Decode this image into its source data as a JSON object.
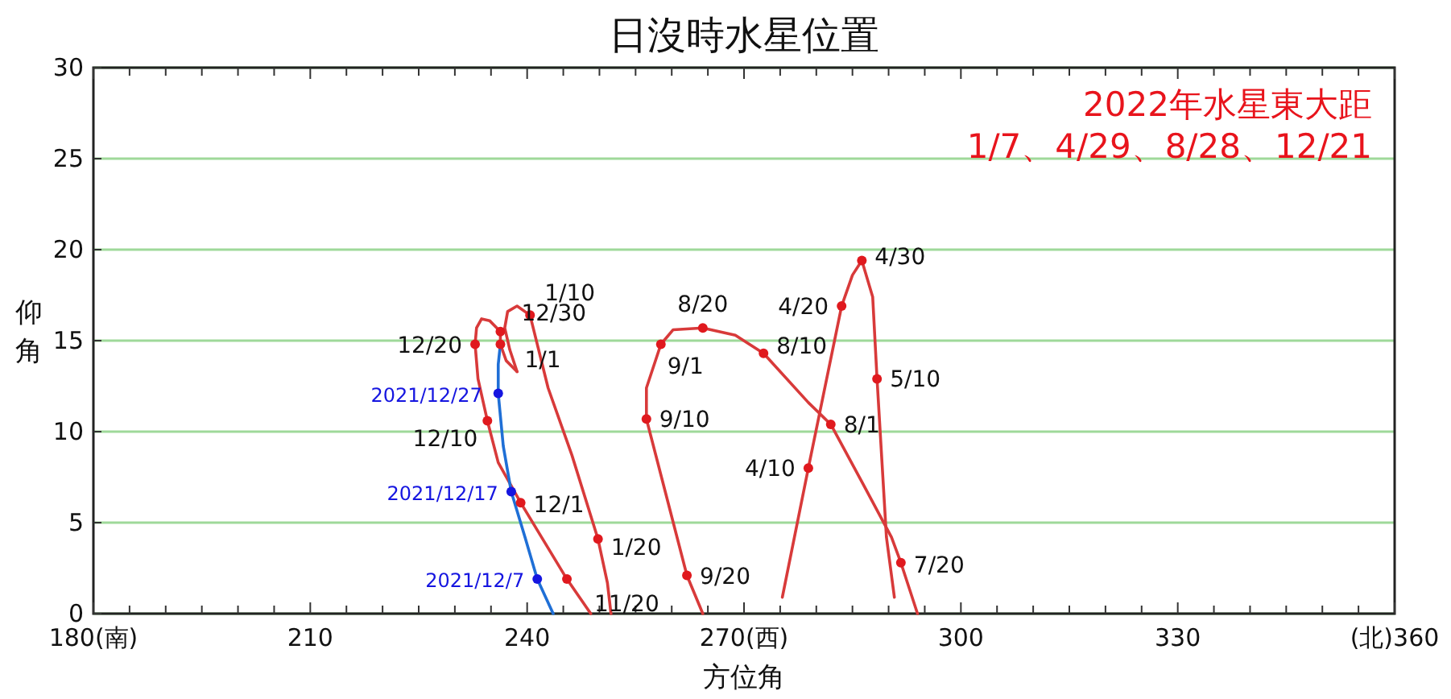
{
  "chart_data": {
    "type": "line",
    "title": "日沒時水星位置",
    "xlabel": "方位角",
    "ylabel": "仰角",
    "annotations": [
      "2022年水星東大距",
      "1/7、4/29、8/28、12/21",
      {
        "text": "11/20",
        "x": 245.5,
        "y": 1.9
      },
      {
        "text": "12/1",
        "x": 239.1,
        "y": 6.1
      },
      {
        "text": "12/10",
        "x": 234.5,
        "y": 10.6
      },
      {
        "text": "12/20",
        "x": 232.8,
        "y": 14.8
      },
      {
        "text": "12/30",
        "x": 236.3,
        "y": 15.5
      },
      {
        "text": "1/1",
        "x": 236.3,
        "y": 14.8
      },
      {
        "text": "1/10",
        "x": 240.4,
        "y": 16.4
      },
      {
        "text": "1/20",
        "x": 249.8,
        "y": 4.1
      },
      {
        "text": "4/10",
        "x": 278.9,
        "y": 8.0
      },
      {
        "text": "4/20",
        "x": 283.5,
        "y": 16.9
      },
      {
        "text": "4/30",
        "x": 286.3,
        "y": 19.4
      },
      {
        "text": "5/10",
        "x": 288.4,
        "y": 12.9
      },
      {
        "text": "7/20",
        "x": 291.7,
        "y": 2.8
      },
      {
        "text": "8/1",
        "x": 282.0,
        "y": 10.4
      },
      {
        "text": "8/10",
        "x": 272.7,
        "y": 14.3
      },
      {
        "text": "8/20",
        "x": 264.3,
        "y": 15.7
      },
      {
        "text": "9/1",
        "x": 258.5,
        "y": 14.8
      },
      {
        "text": "9/10",
        "x": 256.5,
        "y": 10.7
      },
      {
        "text": "9/20",
        "x": 262.1,
        "y": 2.1
      },
      {
        "text": "2021/12/7",
        "x": 241.4,
        "y": 1.9
      },
      {
        "text": "2021/12/17",
        "x": 237.8,
        "y": 6.7
      },
      {
        "text": "2021/12/27",
        "x": 236.0,
        "y": 12.1
      }
    ],
    "xlim": [
      180,
      360
    ],
    "ylim": [
      0,
      30
    ],
    "xticks": [
      {
        "value": 180,
        "label": "180(南)"
      },
      {
        "value": 185,
        "label": null
      },
      {
        "value": 190,
        "label": null
      },
      {
        "value": 195,
        "label": null
      },
      {
        "value": 200,
        "label": null
      },
      {
        "value": 205,
        "label": null
      },
      210,
      {
        "value": 215,
        "label": null
      },
      {
        "value": 220,
        "label": null
      },
      {
        "value": 225,
        "label": null
      },
      {
        "value": 230,
        "label": null
      },
      {
        "value": 235,
        "label": null
      },
      240,
      {
        "value": 245,
        "label": null
      },
      {
        "value": 250,
        "label": null
      },
      {
        "value": 255,
        "label": null
      },
      {
        "value": 260,
        "label": null
      },
      {
        "value": 265,
        "label": null
      },
      {
        "value": 270,
        "label": "270(西)"
      },
      {
        "value": 275,
        "label": null
      },
      {
        "value": 280,
        "label": null
      },
      {
        "value": 285,
        "label": null
      },
      {
        "value": 290,
        "label": null
      },
      {
        "value": 295,
        "label": null
      },
      300,
      {
        "value": 305,
        "label": null
      },
      {
        "value": 310,
        "label": null
      },
      {
        "value": 315,
        "label": null
      },
      {
        "value": 320,
        "label": null
      },
      {
        "value": 325,
        "label": null
      },
      330,
      {
        "value": 335,
        "label": null
      },
      {
        "value": 340,
        "label": null
      },
      {
        "value": 345,
        "label": null
      },
      {
        "value": 350,
        "label": null
      },
      {
        "value": 355,
        "label": null
      },
      {
        "value": 360,
        "label": "(北)360"
      }
    ],
    "yticks": [
      0,
      5,
      10,
      15,
      20,
      25,
      30
    ],
    "grid": "y",
    "marker": "none",
    "line_style": "solid",
    "series": [
      {
        "color": "#d83a3a",
        "x": [
          248.8,
          245.5,
          239.1,
          236.0,
          234.5,
          233.2,
          232.8,
          233.0,
          233.7,
          234.8,
          235.8,
          236.3,
          236.3,
          237.1,
          238.6
        ],
        "values": [
          0,
          1.9,
          6.1,
          8.3,
          10.6,
          12.9,
          14.8,
          15.7,
          16.2,
          16.1,
          15.7,
          15.5,
          14.8,
          13.9,
          13.3
        ]
      },
      {
        "color": "#d83a3a",
        "x": [
          238.6,
          237.6,
          236.9,
          237.3,
          238.6,
          240.4,
          242.9,
          246.2,
          249.8,
          251.1,
          251.6
        ],
        "values": [
          13.3,
          14.5,
          15.7,
          16.6,
          16.9,
          16.4,
          12.4,
          8.7,
          4.1,
          1.7,
          0
        ]
      },
      {
        "color": "#1f6fd6",
        "x": [
          243.6,
          241.4,
          239.7,
          237.8,
          236.7,
          236.0,
          236.0,
          236.3
        ],
        "values": [
          0,
          1.9,
          4.2,
          6.7,
          9.2,
          12.1,
          13.7,
          14.8
        ]
      },
      {
        "color": "#d83a3a",
        "x": [
          294.0,
          291.7,
          290.4,
          286.5,
          282.0,
          278.9,
          272.7,
          268.8,
          264.3,
          260.2,
          258.5,
          256.5,
          256.5,
          262.1,
          264.3
        ],
        "values": [
          0,
          2.8,
          4.2,
          7.1,
          10.4,
          11.6,
          14.3,
          15.3,
          15.7,
          15.6,
          14.8,
          12.4,
          10.7,
          2.1,
          0
        ]
      },
      {
        "color": "#d83a3a",
        "x": [
          275.3,
          278.9,
          283.5,
          285.0,
          286.3,
          287.8,
          288.4,
          289.7,
          290.8
        ],
        "values": [
          0.9,
          8.0,
          16.9,
          18.6,
          19.4,
          17.4,
          12.9,
          4.2,
          0.9
        ]
      },
      {
        "type": "scatter",
        "marker": "circle",
        "color": "#e0191e",
        "x": [
          245.5,
          239.1,
          234.5,
          232.8,
          236.3,
          236.3,
          240.4,
          249.8,
          278.9,
          283.5,
          286.3,
          288.4,
          291.7,
          282.0,
          272.7,
          264.3,
          258.5,
          256.5,
          262.1
        ],
        "values": [
          1.9,
          6.1,
          10.6,
          14.8,
          15.5,
          14.8,
          16.4,
          4.1,
          8.0,
          16.9,
          19.4,
          12.9,
          2.8,
          10.4,
          14.3,
          15.7,
          14.8,
          10.7,
          2.1
        ]
      },
      {
        "type": "scatter",
        "marker": "circle",
        "color": "#1515e0",
        "x": [
          241.4,
          237.8,
          236.0
        ],
        "values": [
          1.9,
          6.7,
          12.1
        ]
      }
    ]
  }
}
